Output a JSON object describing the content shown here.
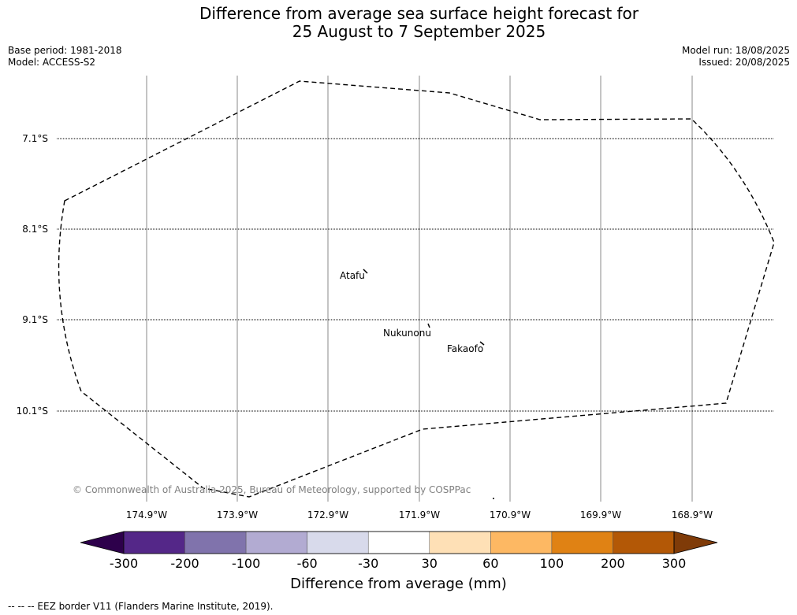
{
  "title_line1": "Difference from average sea surface height forecast for",
  "title_line2": "25 August to 7 September 2025",
  "base_period": "Base period: 1981-2018",
  "model": "Model: ACCESS-S2",
  "model_run": "Model run: 18/08/2025",
  "issued": "Issued: 20/08/2025",
  "lat_labels": [
    "7.1°S",
    "8.1°S",
    "9.1°S",
    "10.1°S"
  ],
  "lon_labels": [
    "174.9°W",
    "173.9°W",
    "172.9°W",
    "171.9°W",
    "170.9°W",
    "169.9°W",
    "168.9°W"
  ],
  "islands": [
    "Atafu",
    "Nukunonu",
    "Fakaofo"
  ],
  "copyright": "© Commonwealth of Australia 2025, Bureau of Meteorology, supported by COSPPac",
  "colorbar": {
    "ticks": [
      "-300",
      "-200",
      "-100",
      "-60",
      "-30",
      "30",
      "60",
      "100",
      "200",
      "300"
    ],
    "colors": [
      "#2d004b",
      "#542788",
      "#8073ac",
      "#b2abd2",
      "#d8daeb",
      "#ffffff",
      "#fee0b6",
      "#fdb863",
      "#e08214",
      "#b35806",
      "#7f3b08"
    ],
    "label": "Difference from average (mm)"
  },
  "source_note": "--  --  -- EEZ border V11 (Flanders Marine Institute, 2019)."
}
